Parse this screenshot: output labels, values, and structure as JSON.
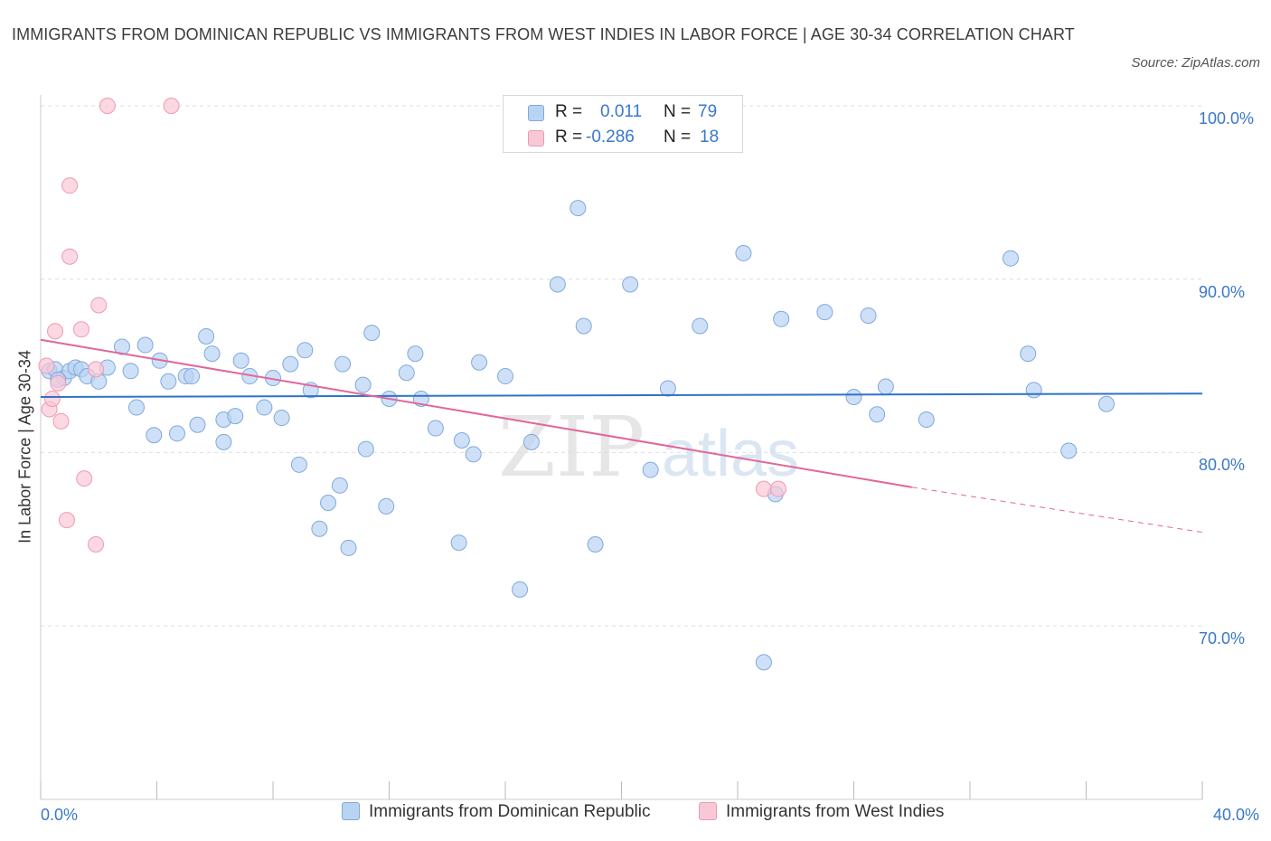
{
  "title": "IMMIGRANTS FROM DOMINICAN REPUBLIC VS IMMIGRANTS FROM WEST INDIES IN LABOR FORCE | AGE 30-34 CORRELATION CHART",
  "source": "Source: ZipAtlas.com",
  "watermark": {
    "zip": "ZIP",
    "atlas": "atlas"
  },
  "legend": {
    "rows": [
      {
        "r_label": "R =",
        "r_value": "0.011",
        "n_label": "N =",
        "n_value": "79"
      },
      {
        "r_label": "R =",
        "r_value": "-0.286",
        "n_label": "N =",
        "n_value": "18"
      }
    ]
  },
  "colors": {
    "series1_fill": "#b9d3f3",
    "series1_stroke": "#7fa9dc",
    "series1_line": "#2f72c8",
    "series2_fill": "#f9c8d6",
    "series2_stroke": "#ee9ab4",
    "series2_line": "#e0679a",
    "axis_text": "#3a78c8",
    "grid": "#dddddd"
  },
  "chart_data": {
    "type": "scatter",
    "title": "IMMIGRANTS FROM DOMINICAN REPUBLIC VS IMMIGRANTS FROM WEST INDIES IN LABOR FORCE | AGE 30-34 CORRELATION CHART",
    "xlabel": "",
    "ylabel": "In Labor Force | Age 30-34",
    "xlim": [
      0,
      40
    ],
    "ylim": [
      60,
      100
    ],
    "x_tick_labels": [
      "0.0%",
      "40.0%"
    ],
    "y_tick_values": [
      100,
      90,
      80,
      70
    ],
    "y_tick_labels": [
      "100.0%",
      "90.0%",
      "80.0%",
      "70.0%"
    ],
    "grid": "horizontal dashed",
    "legend_position": "bottom",
    "series": [
      {
        "name": "Immigrants from Dominican Republic",
        "r": 0.011,
        "n": 79,
        "trend": {
          "x": [
            0,
            40
          ],
          "y": [
            83.2,
            83.4
          ]
        },
        "points": [
          [
            0.3,
            84.7
          ],
          [
            0.5,
            84.8
          ],
          [
            0.8,
            84.3
          ],
          [
            1.0,
            84.7
          ],
          [
            1.2,
            84.9
          ],
          [
            1.4,
            84.8
          ],
          [
            1.6,
            84.4
          ],
          [
            2.0,
            84.1
          ],
          [
            2.3,
            84.9
          ],
          [
            2.8,
            86.1
          ],
          [
            3.1,
            84.7
          ],
          [
            3.3,
            82.6
          ],
          [
            3.6,
            86.2
          ],
          [
            3.9,
            81.0
          ],
          [
            4.1,
            85.3
          ],
          [
            4.4,
            84.1
          ],
          [
            4.7,
            81.1
          ],
          [
            5.0,
            84.4
          ],
          [
            5.2,
            84.4
          ],
          [
            5.4,
            81.6
          ],
          [
            5.7,
            86.7
          ],
          [
            5.9,
            85.7
          ],
          [
            6.3,
            80.6
          ],
          [
            6.3,
            81.9
          ],
          [
            6.7,
            82.1
          ],
          [
            6.9,
            85.3
          ],
          [
            7.2,
            84.4
          ],
          [
            7.7,
            82.6
          ],
          [
            8.0,
            84.3
          ],
          [
            8.3,
            82.0
          ],
          [
            8.6,
            85.1
          ],
          [
            8.9,
            79.3
          ],
          [
            9.1,
            85.9
          ],
          [
            9.3,
            83.6
          ],
          [
            9.6,
            75.6
          ],
          [
            9.9,
            77.1
          ],
          [
            10.3,
            78.1
          ],
          [
            10.4,
            85.1
          ],
          [
            10.6,
            74.5
          ],
          [
            11.1,
            83.9
          ],
          [
            11.2,
            80.2
          ],
          [
            11.4,
            86.9
          ],
          [
            11.9,
            76.9
          ],
          [
            12.0,
            83.1
          ],
          [
            12.6,
            84.6
          ],
          [
            12.9,
            85.7
          ],
          [
            13.1,
            83.1
          ],
          [
            13.6,
            81.4
          ],
          [
            14.4,
            74.8
          ],
          [
            14.5,
            80.7
          ],
          [
            14.9,
            79.9
          ],
          [
            15.1,
            85.2
          ],
          [
            16.0,
            84.4
          ],
          [
            16.5,
            72.1
          ],
          [
            16.9,
            80.6
          ],
          [
            17.8,
            89.7
          ],
          [
            18.5,
            94.1
          ],
          [
            18.7,
            87.3
          ],
          [
            19.1,
            74.7
          ],
          [
            20.3,
            89.7
          ],
          [
            21.0,
            79.0
          ],
          [
            21.6,
            83.7
          ],
          [
            22.7,
            87.3
          ],
          [
            24.2,
            91.5
          ],
          [
            24.9,
            67.9
          ],
          [
            25.3,
            77.6
          ],
          [
            25.5,
            87.7
          ],
          [
            27.0,
            88.1
          ],
          [
            28.0,
            83.2
          ],
          [
            28.5,
            87.9
          ],
          [
            28.8,
            82.2
          ],
          [
            29.1,
            83.8
          ],
          [
            30.5,
            81.9
          ],
          [
            33.4,
            91.2
          ],
          [
            34.0,
            85.7
          ],
          [
            34.2,
            83.6
          ],
          [
            35.4,
            80.1
          ],
          [
            36.7,
            82.8
          ],
          [
            0.6,
            84.2
          ]
        ]
      },
      {
        "name": "Immigrants from West Indies",
        "r": -0.286,
        "n": 18,
        "trend": {
          "x": [
            0,
            30
          ],
          "y": [
            86.5,
            78.0
          ]
        },
        "trend_dashed": {
          "x": [
            30,
            40
          ],
          "y": [
            78.0,
            75.4
          ]
        },
        "points": [
          [
            0.2,
            85.0
          ],
          [
            0.3,
            82.5
          ],
          [
            0.4,
            83.1
          ],
          [
            0.5,
            87.0
          ],
          [
            0.6,
            84.0
          ],
          [
            0.7,
            81.8
          ],
          [
            0.9,
            76.1
          ],
          [
            1.0,
            91.3
          ],
          [
            1.0,
            95.4
          ],
          [
            1.4,
            87.1
          ],
          [
            1.5,
            78.5
          ],
          [
            1.9,
            74.7
          ],
          [
            1.9,
            84.8
          ],
          [
            2.0,
            88.5
          ],
          [
            2.3,
            100.0
          ],
          [
            4.5,
            100.0
          ],
          [
            24.9,
            77.9
          ],
          [
            25.4,
            77.9
          ]
        ]
      }
    ]
  }
}
